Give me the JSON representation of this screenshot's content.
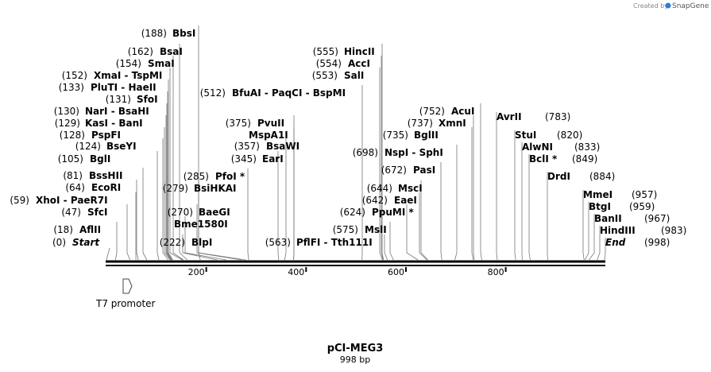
{
  "credit": "Created by",
  "brand": "SnapGene",
  "title": "pCI-MEG3",
  "subtitle": "998 bp",
  "feature": "T7 promoter",
  "ticks": [
    "200",
    "400",
    "600",
    "800"
  ],
  "sites": [
    {
      "pos": "(0)",
      "name": "Start",
      "bp": 0
    },
    {
      "pos": "(18)",
      "name": "AflII",
      "bp": 18
    },
    {
      "pos": "(47)",
      "name": "SfcI",
      "bp": 47
    },
    {
      "pos": "(59)",
      "name": "XhoI  - PaeR7I",
      "bp": 59
    },
    {
      "pos": "(64)",
      "name": "EcoRI",
      "bp": 64
    },
    {
      "pos": "(81)",
      "name": "BssHII",
      "bp": 81
    },
    {
      "pos": "(105)",
      "name": "BglI",
      "bp": 105
    },
    {
      "pos": "(124)",
      "name": "BseYI",
      "bp": 124
    },
    {
      "pos": "(128)",
      "name": "PspFI",
      "bp": 128
    },
    {
      "pos": "(129)",
      "name": "KasI  - BanI",
      "bp": 129
    },
    {
      "pos": "(130)",
      "name": "NarI  - BsaHI",
      "bp": 130
    },
    {
      "pos": "(131)",
      "name": "SfoI",
      "bp": 131
    },
    {
      "pos": "(133)",
      "name": "PluTI  - HaeII",
      "bp": 133
    },
    {
      "pos": "(152)",
      "name": "XmaI  - TspMI",
      "bp": 152
    },
    {
      "pos": "(154)",
      "name": "SmaI",
      "bp": 154
    },
    {
      "pos": "(162)",
      "name": "BsaI",
      "bp": 162
    },
    {
      "pos": "(188)",
      "name": "BbsI",
      "bp": 188
    },
    {
      "pos": "(222)",
      "name": "BlpI",
      "bp": 222
    },
    {
      "pos": "",
      "name": "Bme1580I",
      "bp": 240
    },
    {
      "pos": "(270)",
      "name": "BaeGI",
      "bp": 270
    },
    {
      "pos": "(279)",
      "name": "BsiHKAI",
      "bp": 279
    },
    {
      "pos": "(285)",
      "name": "PfoI *",
      "bp": 285
    },
    {
      "pos": "(345)",
      "name": "EarI",
      "bp": 345
    },
    {
      "pos": "(357)",
      "name": "BsaWI",
      "bp": 357
    },
    {
      "pos": "",
      "name": "MspA1I",
      "bp": 375
    },
    {
      "pos": "(375)",
      "name": "PvuII",
      "bp": 375
    },
    {
      "pos": "(512)",
      "name": "BfuAI  - PaqCI  - BspMI",
      "bp": 512
    },
    {
      "pos": "(553)",
      "name": "SalI",
      "bp": 553
    },
    {
      "pos": "(554)",
      "name": "AccI",
      "bp": 554
    },
    {
      "pos": "(555)",
      "name": "HincII",
      "bp": 555
    },
    {
      "pos": "(563)",
      "name": "PflFI  - Tth111I",
      "bp": 563
    },
    {
      "pos": "(575)",
      "name": "MslI",
      "bp": 575
    },
    {
      "pos": "(624)",
      "name": "PpuMI *",
      "bp": 624
    },
    {
      "pos": "(642)",
      "name": "EaeI",
      "bp": 642
    },
    {
      "pos": "(644)",
      "name": "MscI",
      "bp": 644
    },
    {
      "pos": "(672)",
      "name": "PasI",
      "bp": 672
    },
    {
      "pos": "(698)",
      "name": "NspI  - SphI",
      "bp": 698
    },
    {
      "pos": "(735)",
      "name": "BglII",
      "bp": 735
    },
    {
      "pos": "(737)",
      "name": "XmnI",
      "bp": 737
    },
    {
      "pos": "(752)",
      "name": "AcuI",
      "bp": 752
    },
    {
      "pos": "(783)",
      "name": "AvrII",
      "bp": 783
    },
    {
      "pos": "(820)",
      "name": "StuI",
      "bp": 820
    },
    {
      "pos": "(833)",
      "name": "AlwNI",
      "bp": 833
    },
    {
      "pos": "(849)",
      "name": "BclI *",
      "bp": 849
    },
    {
      "pos": "(884)",
      "name": "DrdI",
      "bp": 884
    },
    {
      "pos": "(957)",
      "name": "MmeI",
      "bp": 957
    },
    {
      "pos": "(959)",
      "name": "BtgI",
      "bp": 959
    },
    {
      "pos": "(967)",
      "name": "BanII",
      "bp": 967
    },
    {
      "pos": "(983)",
      "name": "HindIII",
      "bp": 983
    },
    {
      "pos": "(998)",
      "name": "End",
      "bp": 998
    }
  ]
}
